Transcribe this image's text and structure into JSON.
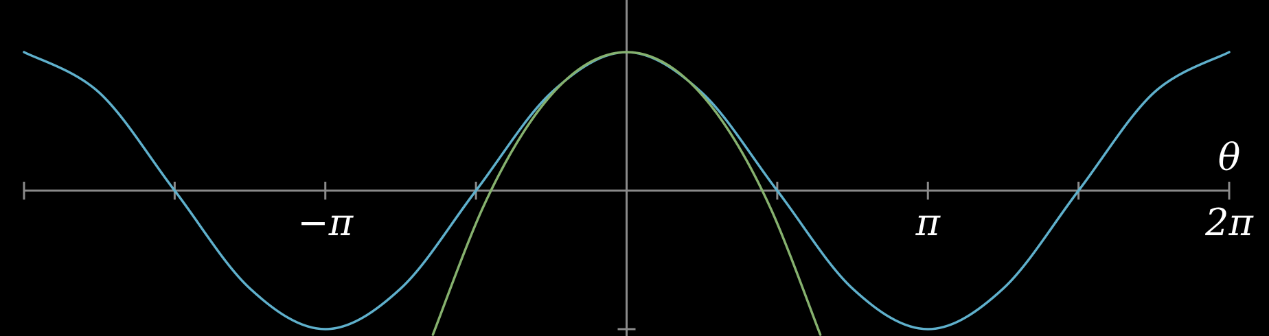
{
  "chart_data": {
    "type": "line",
    "title": "",
    "xlabel": "θ",
    "ylabel": "",
    "xlim": [
      -6.2832,
      6.2832
    ],
    "ylim": [
      -1.0,
      1.0
    ],
    "grid": false,
    "x_ticks": [
      -6.2832,
      -4.7124,
      -3.1416,
      -1.5708,
      0,
      1.5708,
      3.1416,
      4.7124,
      6.2832
    ],
    "x_tick_labels": [
      {
        "x": -3.1416,
        "label": "−π"
      },
      {
        "x": 3.1416,
        "label": "π"
      },
      {
        "x": 6.2832,
        "label": "2π"
      }
    ],
    "y_ticks": [
      -1.0
    ],
    "series": [
      {
        "color": "#5fb0cc",
        "x": [
          -6.2832,
          -5.4978,
          -4.7124,
          -3.927,
          -3.1416,
          -2.3562,
          -1.5708,
          -0.7854,
          0,
          0.7854,
          1.5708,
          2.3562,
          3.1416,
          3.927,
          4.7124,
          5.4978,
          6.2832
        ],
        "values": [
          1,
          0.7071,
          0,
          -0.7071,
          -1,
          -0.7071,
          0,
          0.7071,
          1,
          0.7071,
          0,
          -0.7071,
          -1,
          -0.7071,
          0,
          0.7071,
          1
        ]
      },
      {
        "color": "#86b16e",
        "x": [
          -2.02,
          -1.5,
          -1.0,
          -0.5,
          0,
          0.5,
          1.0,
          1.5,
          2.02
        ],
        "values": [
          -1.04,
          -0.125,
          0.5,
          0.875,
          1,
          0.875,
          0.5,
          -0.125,
          -1.04
        ]
      }
    ]
  }
}
